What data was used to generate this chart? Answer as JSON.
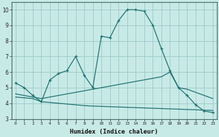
{
  "xlabel": "Humidex (Indice chaleur)",
  "bg_color": "#c8eae6",
  "grid_color": "#a0cccc",
  "line_color": "#1e7070",
  "xlim": [
    -0.5,
    23.5
  ],
  "ylim": [
    3.0,
    10.5
  ],
  "yticks": [
    3,
    4,
    5,
    6,
    7,
    8,
    9,
    10
  ],
  "xticks": [
    0,
    1,
    2,
    3,
    4,
    5,
    6,
    7,
    8,
    9,
    10,
    11,
    12,
    13,
    14,
    15,
    16,
    17,
    18,
    19,
    20,
    21,
    22,
    23
  ],
  "line1_x": [
    0,
    1,
    2,
    3,
    4,
    5,
    6,
    7,
    8,
    9,
    10,
    11,
    12,
    13,
    14,
    15,
    16,
    17,
    18,
    19,
    20,
    21,
    22,
    23
  ],
  "line1_y": [
    5.3,
    5.0,
    4.5,
    4.1,
    5.5,
    5.9,
    6.1,
    7.0,
    5.8,
    5.0,
    8.3,
    8.2,
    9.3,
    10.0,
    10.0,
    9.9,
    9.0,
    7.5,
    6.1,
    5.0,
    4.5,
    3.9,
    3.5,
    3.4
  ],
  "line2_x": [
    0,
    1,
    2,
    3,
    4,
    5,
    6,
    7,
    8,
    9,
    10,
    11,
    12,
    13,
    14,
    15,
    16,
    17,
    18,
    19,
    20,
    21,
    22,
    23
  ],
  "line2_y": [
    4.6,
    4.5,
    4.4,
    4.3,
    4.4,
    4.5,
    4.6,
    4.7,
    4.8,
    4.9,
    5.0,
    5.1,
    5.2,
    5.3,
    5.4,
    5.5,
    5.6,
    5.7,
    6.0,
    5.0,
    4.9,
    4.7,
    4.5,
    4.3
  ],
  "line3_x": [
    0,
    1,
    2,
    3,
    4,
    5,
    6,
    7,
    8,
    9,
    10,
    11,
    12,
    13,
    14,
    15,
    16,
    17,
    18,
    19,
    20,
    21,
    22,
    23
  ],
  "line3_y": [
    4.4,
    4.35,
    4.3,
    4.1,
    4.05,
    4.0,
    3.95,
    3.9,
    3.85,
    3.82,
    3.8,
    3.78,
    3.76,
    3.74,
    3.72,
    3.7,
    3.68,
    3.66,
    3.64,
    3.62,
    3.6,
    3.58,
    3.56,
    3.54
  ]
}
